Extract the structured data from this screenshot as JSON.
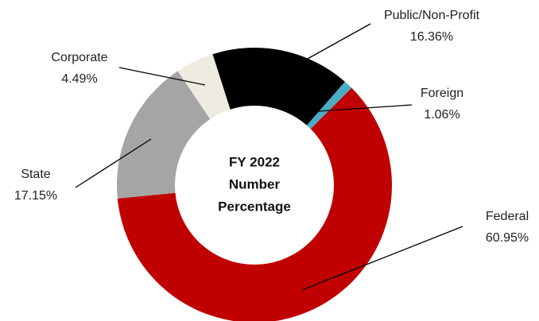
{
  "chart_data": {
    "type": "donut",
    "title": [
      "FY 2022",
      "Number",
      "Percentage"
    ],
    "categories": [
      "Public/Non-Profit",
      "Foreign",
      "Federal",
      "State",
      "Corporate"
    ],
    "values": [
      16.36,
      1.06,
      60.95,
      17.15,
      4.49
    ],
    "value_labels": [
      "16.36%",
      "1.06%",
      "60.95%",
      "17.15%",
      "4.49%"
    ],
    "colors": [
      "#000000",
      "#4bacc6",
      "#c00000",
      "#a5a5a5",
      "#eeece1"
    ]
  }
}
